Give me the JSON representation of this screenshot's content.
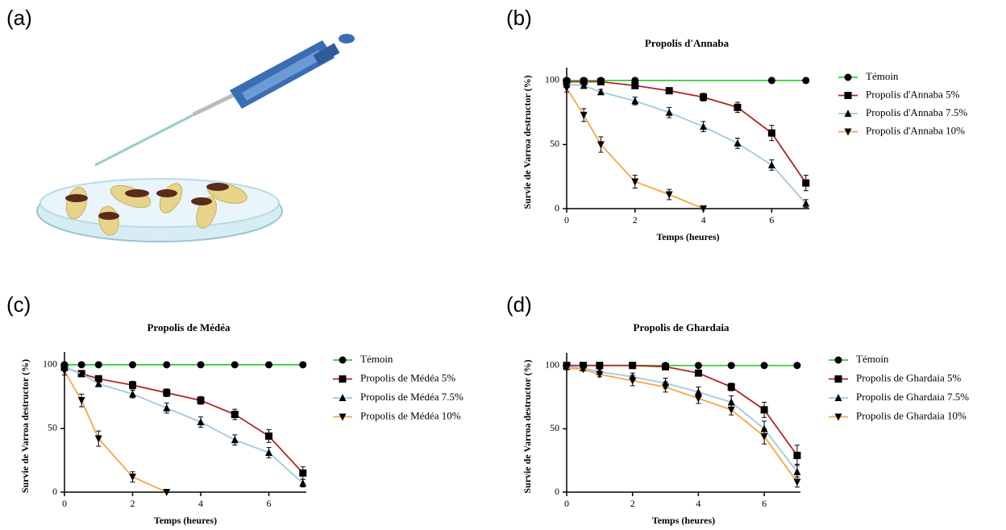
{
  "panel_labels": [
    "(a)",
    "(b)",
    "(c)",
    "(d)"
  ],
  "chart_data": [
    {
      "type": "line",
      "title": "Propolis d'Annaba",
      "x_label": "Temps (heures)",
      "y_label": "Survie de Varroa destructor (%)",
      "xlim": [
        0,
        7.1
      ],
      "ylim": [
        0,
        110
      ],
      "xticks": [
        0,
        2,
        4,
        6
      ],
      "yticks": [
        0,
        50,
        100
      ],
      "series": [
        {
          "name": "Témoin",
          "color": "#33cc33",
          "marker": "circle",
          "x": [
            0,
            0.5,
            1,
            2,
            6,
            7
          ],
          "values": [
            100,
            100,
            100,
            100,
            100,
            100
          ]
        },
        {
          "name": "Propolis d'Annaba 5%",
          "color": "#b22222",
          "marker": "square",
          "x": [
            0,
            0.5,
            1,
            2,
            3,
            4,
            5,
            6,
            7
          ],
          "values": [
            99,
            99,
            99,
            96,
            92,
            87,
            79,
            59,
            20
          ],
          "errors": [
            2,
            1,
            1,
            2,
            2,
            3,
            4,
            6,
            6
          ]
        },
        {
          "name": "Propolis d'Annaba 7.5%",
          "color": "#9ecae1",
          "marker": "triangle-up",
          "x": [
            0,
            0.5,
            1,
            2,
            3,
            4,
            5,
            6,
            7
          ],
          "values": [
            97,
            96,
            91,
            84,
            75,
            64,
            51,
            34,
            4
          ],
          "errors": [
            2,
            2,
            2,
            3,
            4,
            4,
            4,
            4,
            3
          ]
        },
        {
          "name": "Propolis d'Annaba 10%",
          "color": "#f5a742",
          "marker": "triangle-down",
          "x": [
            0,
            0.5,
            1,
            2,
            3,
            4
          ],
          "values": [
            94,
            73,
            50,
            21,
            11,
            0
          ],
          "errors": [
            3,
            5,
            6,
            5,
            4,
            0
          ]
        }
      ]
    },
    {
      "type": "line",
      "title": "Propolis de Médéa",
      "x_label": "Temps (heures)",
      "y_label": "Survie de Varroa destructor (%)",
      "xlim": [
        0,
        7.1
      ],
      "ylim": [
        0,
        110
      ],
      "xticks": [
        0,
        2,
        4,
        6
      ],
      "yticks": [
        0,
        50,
        100
      ],
      "series": [
        {
          "name": "Témoin",
          "color": "#33cc33",
          "marker": "circle",
          "x": [
            0,
            0.5,
            1,
            2,
            3,
            4,
            5,
            6,
            7
          ],
          "values": [
            100,
            100,
            100,
            100,
            100,
            100,
            100,
            100,
            100
          ]
        },
        {
          "name": "Propolis de Médéa 5%",
          "color": "#b22222",
          "marker": "square",
          "x": [
            0,
            0.5,
            1,
            2,
            3,
            4,
            5,
            6,
            7
          ],
          "values": [
            98,
            93,
            89,
            84,
            78,
            72,
            61,
            44,
            15
          ],
          "errors": [
            2,
            2,
            2,
            3,
            3,
            3,
            4,
            5,
            5
          ]
        },
        {
          "name": "Propolis de Médéa 7.5%",
          "color": "#9ecae1",
          "marker": "triangle-up",
          "x": [
            0,
            0.5,
            1,
            2,
            3,
            4,
            5,
            6,
            7
          ],
          "values": [
            98,
            93,
            85,
            77,
            66,
            55,
            41,
            31,
            7
          ],
          "errors": [
            2,
            2,
            2,
            3,
            4,
            4,
            4,
            4,
            3
          ]
        },
        {
          "name": "Propolis de Médéa 10%",
          "color": "#f5a742",
          "marker": "triangle-down",
          "x": [
            0,
            0.5,
            1,
            2,
            3
          ],
          "values": [
            95,
            72,
            42,
            12,
            0
          ],
          "errors": [
            3,
            5,
            6,
            4,
            0
          ]
        }
      ]
    },
    {
      "type": "line",
      "title": "Propolis de Ghardaia",
      "x_label": "Temps (heures)",
      "y_label": "Survie de Varroa destructor (%)",
      "xlim": [
        0,
        7.1
      ],
      "ylim": [
        0,
        110
      ],
      "xticks": [
        0,
        2,
        4,
        6
      ],
      "yticks": [
        0,
        50,
        100
      ],
      "series": [
        {
          "name": "Témoin",
          "color": "#33cc33",
          "marker": "circle",
          "x": [
            0,
            0.5,
            1,
            2,
            3,
            4,
            5,
            6,
            7
          ],
          "values": [
            100,
            100,
            100,
            100,
            100,
            100,
            100,
            100,
            100
          ]
        },
        {
          "name": "Propolis de Ghardaia 5%",
          "color": "#b22222",
          "marker": "square",
          "x": [
            0,
            0.5,
            1,
            2,
            3,
            4,
            5,
            6,
            7
          ],
          "values": [
            100,
            100,
            100,
            100,
            99,
            94,
            83,
            65,
            29
          ],
          "errors": [
            1,
            1,
            1,
            1,
            2,
            2,
            3,
            6,
            8
          ]
        },
        {
          "name": "Propolis de Ghardaia 7.5%",
          "color": "#9ecae1",
          "marker": "triangle-up",
          "x": [
            0,
            0.5,
            1,
            2,
            3,
            4,
            5,
            6,
            7
          ],
          "values": [
            99,
            98,
            95,
            91,
            86,
            79,
            71,
            50,
            16
          ],
          "errors": [
            1,
            1,
            2,
            3,
            4,
            4,
            5,
            6,
            6
          ]
        },
        {
          "name": "Propolis de Ghardaia 10%",
          "color": "#f5a742",
          "marker": "triangle-down",
          "x": [
            0,
            0.5,
            1,
            2,
            3,
            4,
            5,
            6,
            7
          ],
          "values": [
            98,
            97,
            93,
            88,
            83,
            74,
            65,
            44,
            8
          ],
          "errors": [
            1,
            1,
            2,
            4,
            4,
            4,
            4,
            6,
            4
          ]
        }
      ]
    }
  ]
}
